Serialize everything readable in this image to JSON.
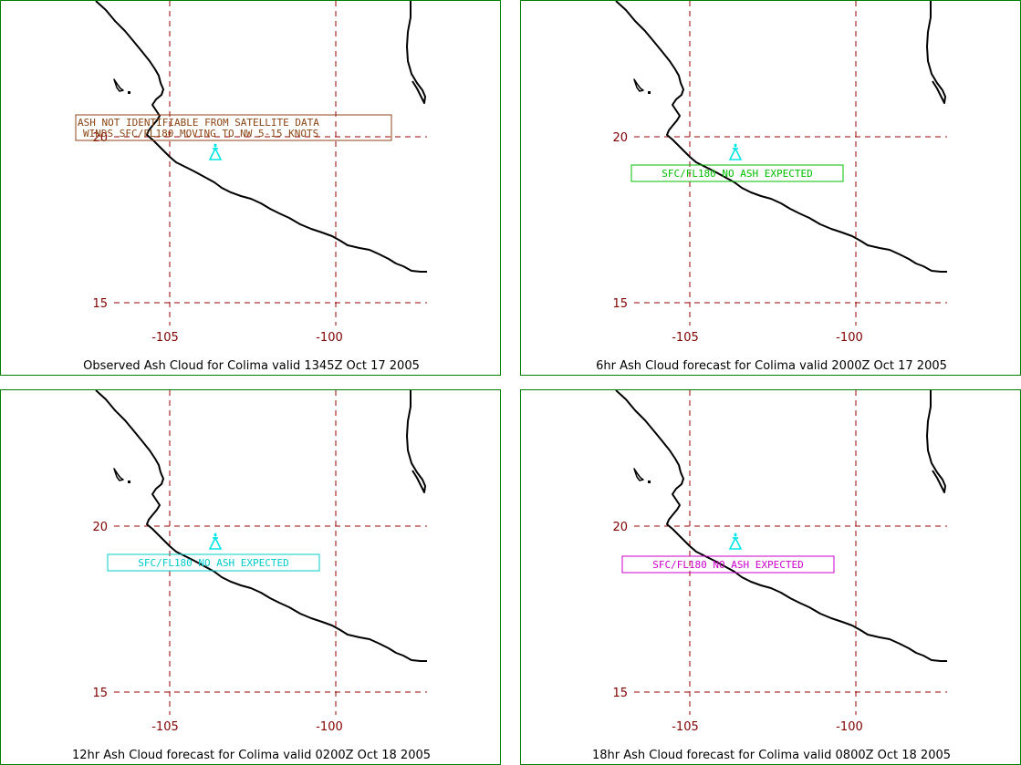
{
  "colors": {
    "panel_border": "#008000",
    "grid": "#990000",
    "tick_label": "#800000",
    "coastline": "#000000",
    "volcano_symbol": "#00e5e5"
  },
  "icon": "volcano-icon",
  "grid_labels": {
    "lat_20": "20",
    "lat_15": "15",
    "lon_105": "-105",
    "lon_100": "-100"
  },
  "panels": [
    {
      "caption": "Observed Ash Cloud for Colima valid 1345Z Oct 17 2005",
      "message_lines": [
        "ASH NOT IDENTIFIABLE FROM SATELLITE DATA",
        "WINDS SFC/FL180 MOVING TO NW 5-15 KNOTS"
      ],
      "message_color": "#8b4513"
    },
    {
      "caption": "6hr Ash Cloud forecast for Colima valid 2000Z Oct 17 2005",
      "message_lines": [
        "SFC/FL180 NO ASH EXPECTED"
      ],
      "message_color": "#00c000"
    },
    {
      "caption": "12hr Ash Cloud forecast for Colima valid 0200Z Oct 18 2005",
      "message_lines": [
        "SFC/FL180 NO ASH EXPECTED"
      ],
      "message_color": "#00cccc"
    },
    {
      "caption": "18hr Ash Cloud forecast for Colima valid 0800Z Oct 18 2005",
      "message_lines": [
        "SFC/FL180 NO ASH EXPECTED"
      ],
      "message_color": "#cc00cc"
    }
  ]
}
